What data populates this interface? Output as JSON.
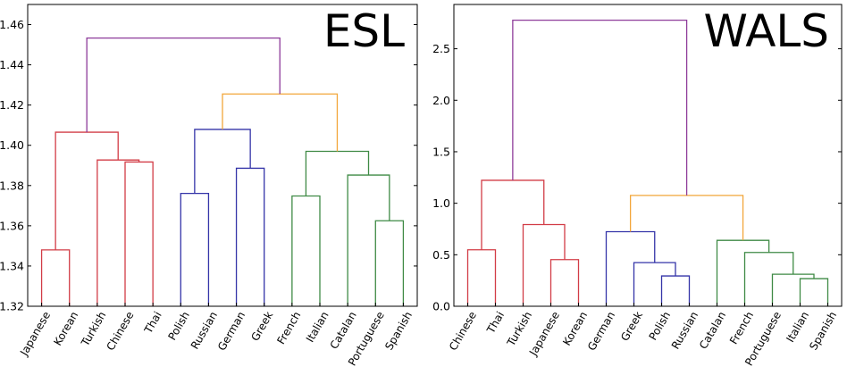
{
  "chart_data": [
    {
      "type": "dendrogram",
      "title": "ESL",
      "ylim": [
        1.32,
        1.47
      ],
      "yticks": [
        "1.32",
        "1.34",
        "1.36",
        "1.38",
        "1.40",
        "1.42",
        "1.44",
        "1.46"
      ],
      "leaves": [
        "Japanese",
        "Korean",
        "Turkish",
        "Chinese",
        "Thai",
        "Polish",
        "Russian",
        "German",
        "Greek",
        "French",
        "Italian",
        "Catalan",
        "Portuguese",
        "Spanish"
      ],
      "merges": [
        {
          "left": 0,
          "right": 1,
          "height": 1.348,
          "color": "red"
        },
        {
          "left": 3,
          "right": 4,
          "height": 1.3917,
          "color": "red"
        },
        {
          "left": 2,
          "right": 15,
          "height": 1.3927,
          "color": "red"
        },
        {
          "left": 14,
          "right": 16,
          "height": 1.4065,
          "color": "red"
        },
        {
          "left": 5,
          "right": 6,
          "height": 1.3761,
          "color": "blue"
        },
        {
          "left": 7,
          "right": 8,
          "height": 1.3886,
          "color": "blue"
        },
        {
          "left": 18,
          "right": 19,
          "height": 1.4079,
          "color": "blue"
        },
        {
          "left": 9,
          "right": 10,
          "height": 1.3748,
          "color": "green"
        },
        {
          "left": 12,
          "right": 13,
          "height": 1.3625,
          "color": "green"
        },
        {
          "left": 11,
          "right": 22,
          "height": 1.3852,
          "color": "green"
        },
        {
          "left": 21,
          "right": 23,
          "height": 1.397,
          "color": "green"
        },
        {
          "left": 20,
          "right": 24,
          "height": 1.4255,
          "color": "orange"
        },
        {
          "left": 17,
          "right": 25,
          "height": 1.4533,
          "color": "purple"
        }
      ]
    },
    {
      "type": "dendrogram",
      "title": "WALS",
      "ylim": [
        0,
        2.93
      ],
      "yticks": [
        "0.0",
        "0.5",
        "1.0",
        "1.5",
        "2.0",
        "2.5"
      ],
      "leaves": [
        "Chinese",
        "Thai",
        "Turkish",
        "Japanese",
        "Korean",
        "German",
        "Greek",
        "Polish",
        "Russian",
        "Catalan",
        "French",
        "Portuguese",
        "Italian",
        "Spanish"
      ],
      "merges": [
        {
          "left": 0,
          "right": 1,
          "height": 0.548,
          "color": "red"
        },
        {
          "left": 3,
          "right": 4,
          "height": 0.453,
          "color": "red"
        },
        {
          "left": 2,
          "right": 15,
          "height": 0.793,
          "color": "red"
        },
        {
          "left": 14,
          "right": 16,
          "height": 1.223,
          "color": "red"
        },
        {
          "left": 7,
          "right": 8,
          "height": 0.294,
          "color": "blue"
        },
        {
          "left": 6,
          "right": 18,
          "height": 0.424,
          "color": "blue"
        },
        {
          "left": 5,
          "right": 19,
          "height": 0.724,
          "color": "blue"
        },
        {
          "left": 12,
          "right": 13,
          "height": 0.268,
          "color": "green"
        },
        {
          "left": 11,
          "right": 21,
          "height": 0.311,
          "color": "green"
        },
        {
          "left": 10,
          "right": 22,
          "height": 0.522,
          "color": "green"
        },
        {
          "left": 9,
          "right": 23,
          "height": 0.64,
          "color": "green"
        },
        {
          "left": 20,
          "right": 24,
          "height": 1.076,
          "color": "orange"
        },
        {
          "left": 17,
          "right": 25,
          "height": 2.777,
          "color": "purple"
        }
      ]
    }
  ],
  "colors": {
    "red": "#d23c46",
    "blue": "#3434a8",
    "green": "#3f8a45",
    "orange": "#f2a63a",
    "purple": "#8e3c9a"
  }
}
